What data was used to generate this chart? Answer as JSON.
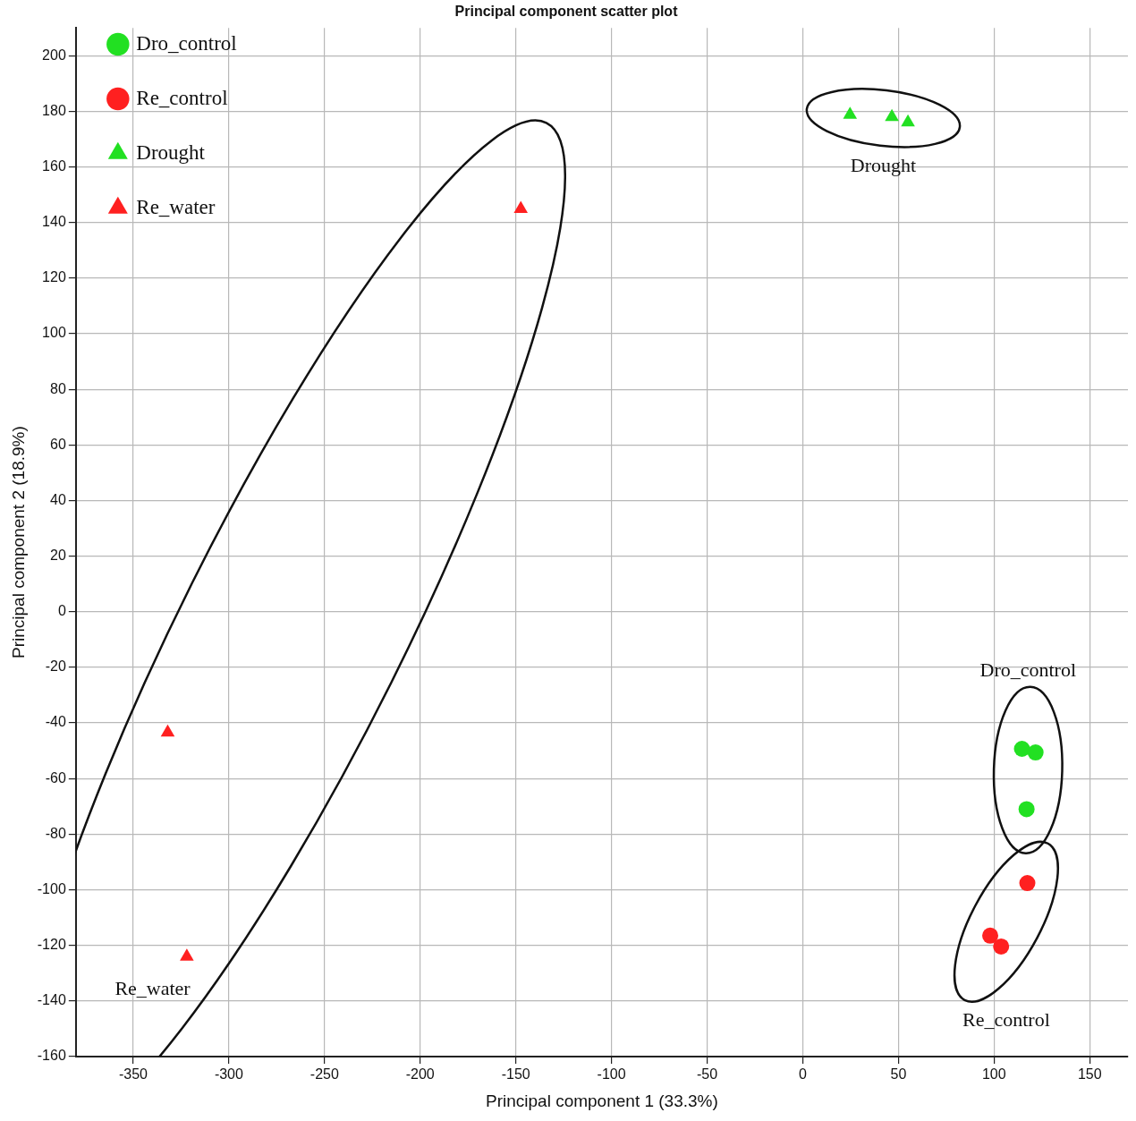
{
  "chart_data": {
    "type": "scatter",
    "title": "Principal component scatter plot",
    "xlabel": "Principal component 1 (33.3%)",
    "ylabel": "Principal component 2 (18.9%)",
    "series": [
      {
        "name": "Dro_control",
        "color": "#22e022",
        "marker": "circle",
        "x": [
          114.6,
          121.7,
          117
        ],
        "values": [
          -49.3,
          -50.6,
          -71
        ]
      },
      {
        "name": "Re_control",
        "color": "#ff2020",
        "marker": "circle",
        "x": [
          117.4,
          98,
          103.7
        ],
        "values": [
          -97.6,
          -116.5,
          -120.4
        ]
      },
      {
        "name": "Drought",
        "color": "#22e022",
        "marker": "triangle",
        "x": [
          24.7,
          46.6,
          55
        ],
        "values": [
          178.8,
          178,
          176
        ]
      },
      {
        "name": "Re_water",
        "color": "#ff2020",
        "marker": "triangle",
        "x": [
          -147.4,
          -332,
          -322
        ],
        "values": [
          144.9,
          -43.4,
          -124
        ]
      }
    ],
    "xlim": [
      -380,
      170
    ],
    "xticks": [
      -350,
      -300,
      -250,
      -200,
      -150,
      -100,
      -50,
      0,
      50,
      100,
      150
    ],
    "ylim": [
      -160,
      210
    ],
    "yticks": [
      -160,
      -140,
      -120,
      -100,
      -80,
      -60,
      -40,
      -20,
      0,
      20,
      40,
      60,
      80,
      100,
      120,
      140,
      160,
      180,
      200
    ],
    "grid": true,
    "legend": "top left",
    "annotations": [
      "Dro_control",
      "Re_control",
      "Drought",
      "Re_water"
    ]
  }
}
